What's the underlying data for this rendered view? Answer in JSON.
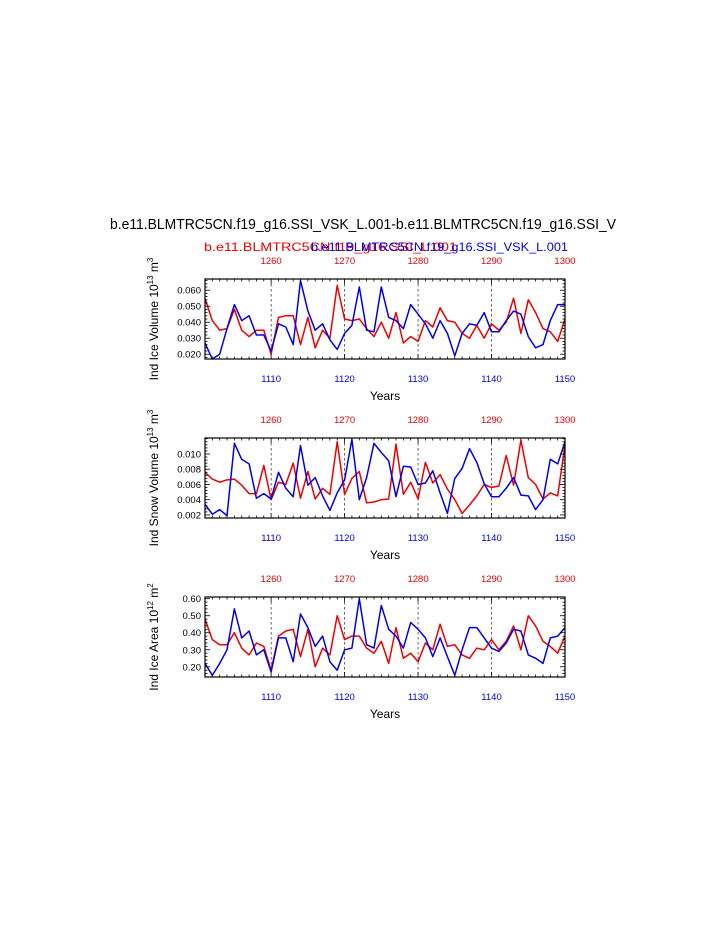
{
  "page": {
    "title": "b.e11.BLMTRC5CN.f19_g16.SSI_VSK_L.001-b.e11.BLMTRC5CN.f19_g16.SSI_V",
    "subtitle_red": "b.e11.BLMTRC5CN.f19_g16.SSI_L.001",
    "subtitle_blue": "b.e11.BLMTRC5CN.f19_g16.SSI_VSK_L.001"
  },
  "colors": {
    "red": "#ee0000",
    "blue": "#0000ee",
    "axis": "#000000"
  },
  "chart_data": [
    {
      "type": "line",
      "ylabel": "Ind Ice Volume 10",
      "ylabel_exp": "13",
      "ylabel_unit": " m",
      "ylabel_unit_exp": "3",
      "xlabel": "Years",
      "xlim_bottom": [
        1101,
        1150
      ],
      "xlim_top": [
        1251,
        1300
      ],
      "xticks_bottom": [
        "1110",
        "1120",
        "1130",
        "1140",
        "1150"
      ],
      "xticks_top": [
        "1260",
        "1270",
        "1280",
        "1290",
        "1300"
      ],
      "ylim": [
        0.017,
        0.067
      ],
      "yticks": [
        "0.020",
        "0.030",
        "0.040",
        "0.050",
        "0.060"
      ],
      "ytick_values": [
        0.02,
        0.03,
        0.04,
        0.05,
        0.06
      ],
      "grid": "dashed vertical at decades",
      "series": [
        {
          "color": "red",
          "values": [
            0.055,
            0.041,
            0.035,
            0.036,
            0.048,
            0.035,
            0.031,
            0.035,
            0.035,
            0.02,
            0.043,
            0.044,
            0.044,
            0.026,
            0.043,
            0.024,
            0.035,
            0.03,
            0.063,
            0.042,
            0.041,
            0.042,
            0.036,
            0.031,
            0.04,
            0.03,
            0.046,
            0.027,
            0.031,
            0.028,
            0.041,
            0.037,
            0.049,
            0.041,
            0.04,
            0.033,
            0.03,
            0.038,
            0.03,
            0.039,
            0.035,
            0.04,
            0.055,
            0.033,
            0.054,
            0.046,
            0.036,
            0.034,
            0.028,
            0.042
          ]
        },
        {
          "color": "blue",
          "values": [
            0.027,
            0.017,
            0.02,
            0.036,
            0.051,
            0.041,
            0.044,
            0.032,
            0.032,
            0.022,
            0.039,
            0.037,
            0.026,
            0.066,
            0.047,
            0.035,
            0.039,
            0.029,
            0.023,
            0.033,
            0.038,
            0.062,
            0.035,
            0.034,
            0.062,
            0.043,
            0.041,
            0.036,
            0.051,
            0.045,
            0.039,
            0.03,
            0.041,
            0.033,
            0.019,
            0.033,
            0.039,
            0.038,
            0.046,
            0.034,
            0.034,
            0.041,
            0.047,
            0.045,
            0.031,
            0.024,
            0.026,
            0.041,
            0.051,
            0.051
          ]
        }
      ]
    },
    {
      "type": "line",
      "ylabel": "Ind Snow Volume 10",
      "ylabel_exp": "13",
      "ylabel_unit": " m",
      "ylabel_unit_exp": "3",
      "xlabel": "Years",
      "xlim_bottom": [
        1101,
        1150
      ],
      "xlim_top": [
        1251,
        1300
      ],
      "xticks_bottom": [
        "1110",
        "1120",
        "1130",
        "1140",
        "1150"
      ],
      "xticks_top": [
        "1260",
        "1270",
        "1280",
        "1290",
        "1300"
      ],
      "ylim": [
        0.0016,
        0.0121
      ],
      "yticks": [
        "0.002",
        "0.004",
        "0.006",
        "0.008",
        "0.010"
      ],
      "ytick_values": [
        0.002,
        0.004,
        0.006,
        0.008,
        0.01
      ],
      "grid": "dashed vertical at decades",
      "series": [
        {
          "color": "red",
          "values": [
            0.0076,
            0.0067,
            0.0063,
            0.0066,
            0.0067,
            0.0059,
            0.0048,
            0.0048,
            0.0085,
            0.004,
            0.0063,
            0.006,
            0.0088,
            0.0042,
            0.0077,
            0.0041,
            0.0055,
            0.0047,
            0.0116,
            0.0047,
            0.0068,
            0.0077,
            0.0036,
            0.0037,
            0.004,
            0.0041,
            0.0113,
            0.0047,
            0.0063,
            0.0041,
            0.0089,
            0.0062,
            0.0073,
            0.0054,
            0.004,
            0.0022,
            0.0033,
            0.0045,
            0.006,
            0.0056,
            0.0058,
            0.0098,
            0.0059,
            0.0118,
            0.0069,
            0.006,
            0.0041,
            0.0049,
            0.0045,
            0.0112
          ]
        },
        {
          "color": "blue",
          "values": [
            0.0034,
            0.0021,
            0.0027,
            0.0019,
            0.0114,
            0.0093,
            0.0087,
            0.0042,
            0.0048,
            0.0041,
            0.0076,
            0.0055,
            0.0044,
            0.0111,
            0.0059,
            0.0069,
            0.0045,
            0.0026,
            0.0049,
            0.0066,
            0.0119,
            0.004,
            0.0069,
            0.0114,
            0.0102,
            0.0091,
            0.0044,
            0.0084,
            0.0083,
            0.006,
            0.0062,
            0.0078,
            0.0049,
            0.0022,
            0.0068,
            0.0081,
            0.0107,
            0.0089,
            0.0061,
            0.0044,
            0.0044,
            0.0055,
            0.0069,
            0.0046,
            0.0045,
            0.0027,
            0.004,
            0.0093,
            0.0087,
            0.0116
          ]
        }
      ]
    },
    {
      "type": "line",
      "ylabel": "Ind Ice Area 10",
      "ylabel_exp": "12",
      "ylabel_unit": " m",
      "ylabel_unit_exp": "2",
      "xlabel": "Years",
      "xlim_bottom": [
        1101,
        1150
      ],
      "xlim_top": [
        1251,
        1300
      ],
      "xticks_bottom": [
        "1110",
        "1120",
        "1130",
        "1140",
        "1150"
      ],
      "xticks_top": [
        "1260",
        "1270",
        "1280",
        "1290",
        "1300"
      ],
      "ylim": [
        0.14,
        0.61
      ],
      "yticks": [
        "0.20",
        "0.30",
        "0.40",
        "0.50",
        "0.60"
      ],
      "ytick_values": [
        0.2,
        0.3,
        0.4,
        0.5,
        0.6
      ],
      "grid": "dashed vertical at decades",
      "series": [
        {
          "color": "red",
          "values": [
            0.48,
            0.36,
            0.33,
            0.33,
            0.4,
            0.31,
            0.27,
            0.34,
            0.32,
            0.18,
            0.38,
            0.41,
            0.42,
            0.26,
            0.42,
            0.2,
            0.31,
            0.27,
            0.5,
            0.36,
            0.38,
            0.38,
            0.31,
            0.28,
            0.35,
            0.22,
            0.43,
            0.25,
            0.28,
            0.23,
            0.34,
            0.3,
            0.45,
            0.32,
            0.33,
            0.27,
            0.25,
            0.31,
            0.3,
            0.36,
            0.3,
            0.35,
            0.44,
            0.3,
            0.5,
            0.44,
            0.35,
            0.32,
            0.28,
            0.38
          ]
        },
        {
          "color": "blue",
          "values": [
            0.22,
            0.15,
            0.22,
            0.3,
            0.54,
            0.37,
            0.41,
            0.27,
            0.3,
            0.17,
            0.37,
            0.37,
            0.23,
            0.51,
            0.43,
            0.32,
            0.38,
            0.23,
            0.18,
            0.3,
            0.31,
            0.6,
            0.33,
            0.31,
            0.56,
            0.42,
            0.38,
            0.31,
            0.46,
            0.42,
            0.37,
            0.26,
            0.37,
            0.26,
            0.15,
            0.3,
            0.43,
            0.43,
            0.37,
            0.31,
            0.29,
            0.34,
            0.42,
            0.41,
            0.27,
            0.25,
            0.22,
            0.37,
            0.38,
            0.43
          ]
        }
      ]
    }
  ]
}
